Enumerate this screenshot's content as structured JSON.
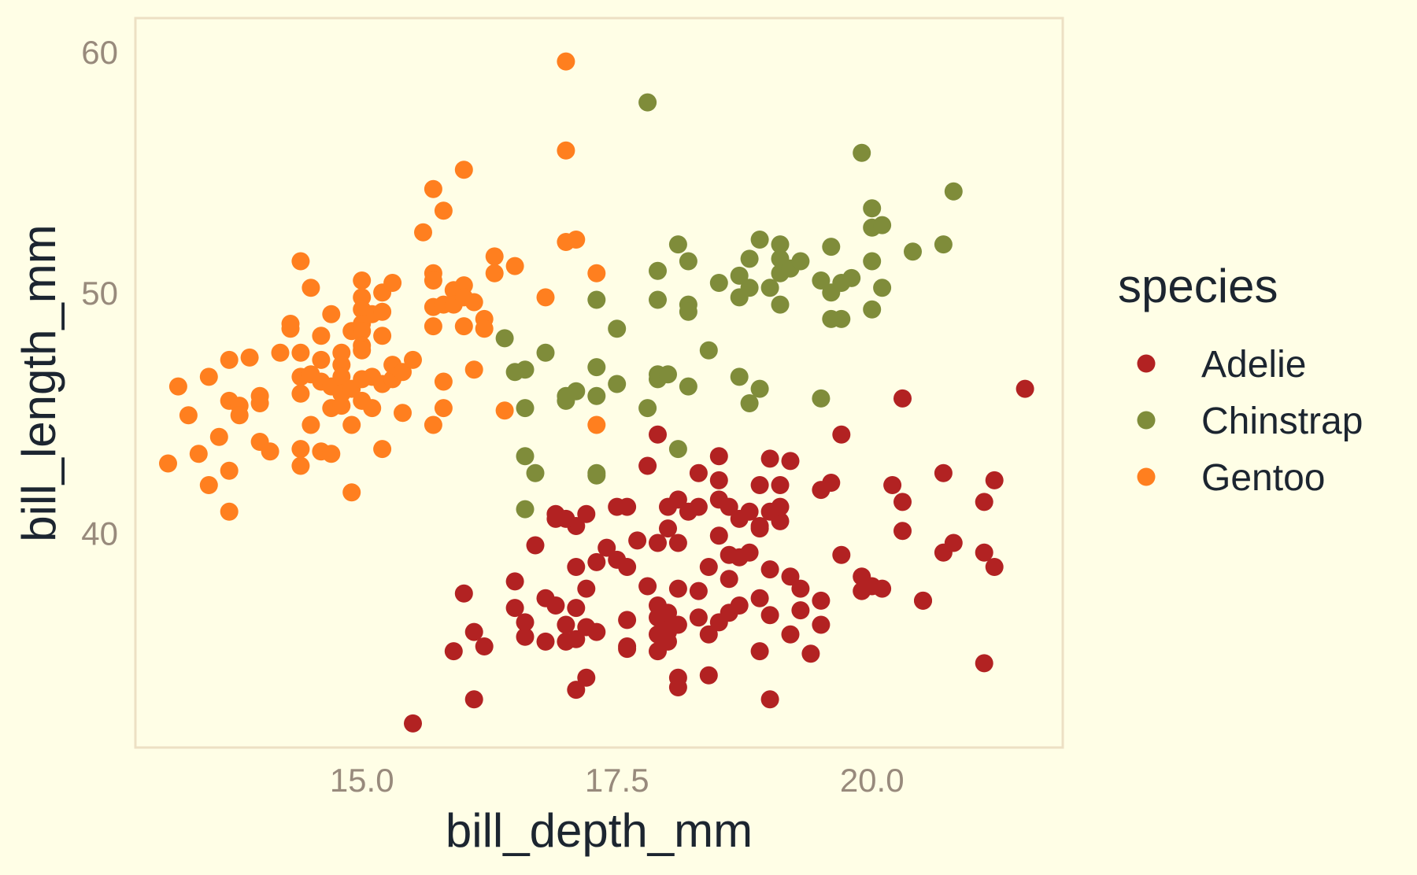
{
  "chart_data": {
    "type": "scatter",
    "xlabel": "bill_depth_mm",
    "ylabel": "bill_length_mm",
    "xlim": [
      12.78,
      21.87
    ],
    "ylim": [
      31.1,
      61.4
    ],
    "xticks": [
      15.0,
      17.5,
      20.0
    ],
    "xtick_labels": [
      "15.0",
      "17.5",
      "20.0"
    ],
    "yticks": [
      40,
      50,
      60
    ],
    "ytick_labels": [
      "40",
      "50",
      "60"
    ],
    "grid": false,
    "panel_border": true,
    "legend": {
      "title": "species",
      "position": "right",
      "entries": [
        "Adelie",
        "Chinstrap",
        "Gentoo"
      ]
    },
    "colors": {
      "Adelie": "#b22222",
      "Chinstrap": "#7f8c3a",
      "Gentoo": "#ff7f1f",
      "background": "#fffee6",
      "panel_border": "#ede0c4",
      "tick_text": "#988a7c",
      "title_text": "#1c2530"
    },
    "series": [
      {
        "name": "Adelie",
        "points": [
          [
            15.5,
            32.1
          ],
          [
            16.1,
            33.1
          ],
          [
            17.1,
            33.5
          ],
          [
            17.2,
            34.0
          ],
          [
            18.1,
            33.6
          ],
          [
            18.1,
            34.0
          ],
          [
            18.4,
            34.1
          ],
          [
            19.0,
            33.1
          ],
          [
            21.1,
            34.6
          ],
          [
            15.9,
            35.1
          ],
          [
            16.1,
            35.9
          ],
          [
            16.2,
            35.3
          ],
          [
            16.6,
            35.7
          ],
          [
            16.8,
            35.5
          ],
          [
            17.0,
            35.5
          ],
          [
            17.1,
            35.6
          ],
          [
            17.3,
            35.9
          ],
          [
            17.6,
            35.3
          ],
          [
            17.6,
            35.2
          ],
          [
            17.9,
            35.8
          ],
          [
            17.9,
            35.1
          ],
          [
            18.0,
            35.5
          ],
          [
            18.0,
            35.9
          ],
          [
            18.4,
            35.8
          ],
          [
            18.9,
            35.1
          ],
          [
            19.2,
            35.8
          ],
          [
            19.4,
            35.0
          ],
          [
            19.5,
            36.2
          ],
          [
            16.0,
            37.5
          ],
          [
            16.5,
            36.9
          ],
          [
            16.6,
            36.3
          ],
          [
            16.8,
            37.3
          ],
          [
            16.9,
            37.0
          ],
          [
            17.0,
            36.2
          ],
          [
            17.1,
            36.9
          ],
          [
            17.2,
            36.1
          ],
          [
            17.6,
            36.4
          ],
          [
            17.9,
            36.5
          ],
          [
            17.9,
            37.0
          ],
          [
            18.0,
            36.0
          ],
          [
            18.1,
            36.2
          ],
          [
            18.0,
            36.7
          ],
          [
            18.3,
            36.5
          ],
          [
            18.5,
            36.3
          ],
          [
            18.6,
            36.7
          ],
          [
            18.7,
            37.0
          ],
          [
            19.0,
            36.6
          ],
          [
            19.3,
            36.8
          ],
          [
            19.5,
            37.2
          ],
          [
            19.9,
            37.6
          ],
          [
            20.1,
            37.7
          ],
          [
            20.5,
            37.2
          ],
          [
            16.5,
            38.0
          ],
          [
            16.7,
            39.5
          ],
          [
            16.9,
            40.6
          ],
          [
            17.1,
            38.6
          ],
          [
            17.1,
            40.3
          ],
          [
            17.2,
            37.7
          ],
          [
            17.3,
            38.8
          ],
          [
            17.4,
            39.4
          ],
          [
            17.5,
            38.9
          ],
          [
            17.6,
            38.6
          ],
          [
            17.7,
            39.7
          ],
          [
            17.8,
            37.8
          ],
          [
            17.9,
            39.6
          ],
          [
            18.0,
            40.2
          ],
          [
            18.1,
            39.6
          ],
          [
            18.1,
            37.7
          ],
          [
            18.3,
            37.6
          ],
          [
            18.4,
            38.6
          ],
          [
            18.5,
            39.9
          ],
          [
            18.6,
            39.1
          ],
          [
            18.6,
            38.1
          ],
          [
            18.7,
            39.0
          ],
          [
            18.8,
            39.2
          ],
          [
            18.9,
            40.3
          ],
          [
            18.9,
            37.3
          ],
          [
            19.0,
            38.5
          ],
          [
            19.1,
            40.5
          ],
          [
            19.2,
            38.2
          ],
          [
            19.3,
            37.7
          ],
          [
            19.7,
            39.1
          ],
          [
            19.9,
            38.2
          ],
          [
            20.0,
            37.8
          ],
          [
            20.3,
            40.1
          ],
          [
            20.5,
            37.2
          ],
          [
            20.7,
            39.2
          ],
          [
            20.8,
            39.6
          ],
          [
            21.1,
            39.2
          ],
          [
            21.2,
            38.6
          ],
          [
            16.9,
            40.8
          ],
          [
            17.0,
            40.6
          ],
          [
            17.2,
            40.8
          ],
          [
            17.5,
            41.1
          ],
          [
            17.6,
            41.1
          ],
          [
            17.8,
            42.8
          ],
          [
            18.0,
            41.1
          ],
          [
            18.1,
            41.4
          ],
          [
            18.2,
            40.9
          ],
          [
            18.3,
            41.1
          ],
          [
            18.5,
            41.4
          ],
          [
            18.6,
            41.1
          ],
          [
            18.7,
            40.6
          ],
          [
            18.8,
            40.9
          ],
          [
            18.9,
            40.2
          ],
          [
            19.0,
            40.9
          ],
          [
            19.1,
            41.1
          ],
          [
            18.3,
            42.5
          ],
          [
            18.5,
            42.2
          ],
          [
            18.5,
            43.2
          ],
          [
            18.9,
            42.0
          ],
          [
            19.0,
            43.1
          ],
          [
            19.1,
            42.0
          ],
          [
            19.2,
            43.0
          ],
          [
            19.5,
            41.8
          ],
          [
            19.6,
            42.1
          ],
          [
            19.7,
            44.1
          ],
          [
            20.2,
            42.0
          ],
          [
            20.3,
            41.3
          ],
          [
            20.3,
            45.6
          ],
          [
            20.7,
            42.5
          ],
          [
            21.1,
            41.3
          ],
          [
            21.2,
            42.2
          ],
          [
            21.5,
            46.0
          ],
          [
            17.9,
            44.1
          ]
        ]
      },
      {
        "name": "Chinstrap",
        "points": [
          [
            16.4,
            48.1
          ],
          [
            16.5,
            46.7
          ],
          [
            16.6,
            46.8
          ],
          [
            16.6,
            45.2
          ],
          [
            16.6,
            43.2
          ],
          [
            16.6,
            41.0
          ],
          [
            16.7,
            42.5
          ],
          [
            16.8,
            47.5
          ],
          [
            17.0,
            45.5
          ],
          [
            17.0,
            45.7
          ],
          [
            17.1,
            45.9
          ],
          [
            17.3,
            45.7
          ],
          [
            17.3,
            46.9
          ],
          [
            17.3,
            49.7
          ],
          [
            17.3,
            42.5
          ],
          [
            17.3,
            42.4
          ],
          [
            17.5,
            48.5
          ],
          [
            17.5,
            46.2
          ],
          [
            17.9,
            46.4
          ],
          [
            17.9,
            46.6
          ],
          [
            17.8,
            45.2
          ],
          [
            17.8,
            57.9
          ],
          [
            17.9,
            50.9
          ],
          [
            17.9,
            49.7
          ],
          [
            18.0,
            46.6
          ],
          [
            18.1,
            52.0
          ],
          [
            18.2,
            51.3
          ],
          [
            18.2,
            49.5
          ],
          [
            18.2,
            49.2
          ],
          [
            18.2,
            46.1
          ],
          [
            18.4,
            47.6
          ],
          [
            18.1,
            43.5
          ],
          [
            18.5,
            50.4
          ],
          [
            18.7,
            50.7
          ],
          [
            18.7,
            49.8
          ],
          [
            18.7,
            46.5
          ],
          [
            18.8,
            51.4
          ],
          [
            18.8,
            50.2
          ],
          [
            18.8,
            45.4
          ],
          [
            18.9,
            52.2
          ],
          [
            19.0,
            50.2
          ],
          [
            18.9,
            46.0
          ],
          [
            19.1,
            52.0
          ],
          [
            19.1,
            51.4
          ],
          [
            19.1,
            50.8
          ],
          [
            19.1,
            49.5
          ],
          [
            19.2,
            51.0
          ],
          [
            19.3,
            51.3
          ],
          [
            19.5,
            50.5
          ],
          [
            19.5,
            45.6
          ],
          [
            19.6,
            51.9
          ],
          [
            19.6,
            50.0
          ],
          [
            19.6,
            48.9
          ],
          [
            19.7,
            50.4
          ],
          [
            19.7,
            48.9
          ],
          [
            19.8,
            50.6
          ],
          [
            19.9,
            55.8
          ],
          [
            20.0,
            52.7
          ],
          [
            20.0,
            53.5
          ],
          [
            20.0,
            51.3
          ],
          [
            20.0,
            49.3
          ],
          [
            20.1,
            52.8
          ],
          [
            20.1,
            50.2
          ],
          [
            20.4,
            51.7
          ],
          [
            20.7,
            52.0
          ],
          [
            20.8,
            54.2
          ]
        ]
      },
      {
        "name": "Gentoo",
        "points": [
          [
            13.1,
            42.9
          ],
          [
            13.2,
            46.1
          ],
          [
            13.3,
            44.9
          ],
          [
            13.4,
            43.3
          ],
          [
            13.5,
            46.5
          ],
          [
            13.5,
            42.0
          ],
          [
            13.6,
            44.0
          ],
          [
            13.7,
            47.2
          ],
          [
            13.7,
            45.5
          ],
          [
            13.7,
            42.6
          ],
          [
            13.7,
            40.9
          ],
          [
            13.8,
            45.3
          ],
          [
            13.8,
            44.9
          ],
          [
            13.9,
            47.3
          ],
          [
            14.0,
            45.7
          ],
          [
            14.0,
            45.4
          ],
          [
            14.0,
            43.8
          ],
          [
            14.1,
            43.4
          ],
          [
            14.2,
            47.5
          ],
          [
            14.3,
            48.7
          ],
          [
            14.3,
            48.5
          ],
          [
            14.4,
            47.5
          ],
          [
            14.4,
            46.5
          ],
          [
            14.4,
            45.8
          ],
          [
            14.4,
            43.5
          ],
          [
            14.4,
            42.8
          ],
          [
            14.4,
            51.3
          ],
          [
            14.5,
            46.6
          ],
          [
            14.5,
            44.5
          ],
          [
            14.5,
            50.2
          ],
          [
            14.6,
            48.2
          ],
          [
            14.6,
            47.2
          ],
          [
            14.6,
            46.3
          ],
          [
            14.6,
            43.4
          ],
          [
            14.7,
            49.1
          ],
          [
            14.7,
            46.1
          ],
          [
            14.7,
            45.2
          ],
          [
            14.7,
            43.3
          ],
          [
            14.8,
            47.5
          ],
          [
            14.8,
            47.0
          ],
          [
            14.8,
            46.5
          ],
          [
            14.8,
            45.8
          ],
          [
            14.8,
            45.3
          ],
          [
            14.9,
            48.4
          ],
          [
            14.9,
            46.0
          ],
          [
            14.9,
            41.7
          ],
          [
            14.9,
            44.5
          ],
          [
            15.1,
            49.1
          ],
          [
            15.1,
            46.5
          ],
          [
            15.1,
            45.2
          ],
          [
            15.2,
            46.2
          ],
          [
            15.3,
            46.4
          ],
          [
            15.0,
            50.5
          ],
          [
            15.0,
            49.8
          ],
          [
            15.0,
            49.3
          ],
          [
            15.0,
            48.7
          ],
          [
            15.0,
            48.4
          ],
          [
            15.0,
            47.8
          ],
          [
            15.0,
            47.6
          ],
          [
            15.0,
            46.4
          ],
          [
            15.0,
            45.5
          ],
          [
            15.2,
            50.0
          ],
          [
            15.2,
            49.2
          ],
          [
            15.2,
            48.2
          ],
          [
            15.2,
            43.5
          ],
          [
            15.3,
            50.4
          ],
          [
            15.3,
            47.0
          ],
          [
            15.4,
            46.7
          ],
          [
            15.4,
            45.0
          ],
          [
            15.5,
            47.2
          ],
          [
            15.6,
            52.5
          ],
          [
            15.7,
            54.3
          ],
          [
            15.7,
            50.8
          ],
          [
            15.7,
            50.5
          ],
          [
            15.7,
            49.4
          ],
          [
            15.7,
            48.6
          ],
          [
            15.7,
            44.5
          ],
          [
            15.8,
            53.4
          ],
          [
            15.8,
            49.5
          ],
          [
            15.8,
            46.3
          ],
          [
            15.8,
            45.2
          ],
          [
            15.9,
            50.1
          ],
          [
            15.9,
            49.5
          ],
          [
            16.0,
            55.1
          ],
          [
            16.0,
            50.3
          ],
          [
            16.0,
            49.8
          ],
          [
            16.0,
            48.6
          ],
          [
            16.1,
            49.6
          ],
          [
            16.1,
            46.8
          ],
          [
            16.2,
            48.9
          ],
          [
            16.2,
            48.5
          ],
          [
            16.3,
            51.5
          ],
          [
            16.3,
            50.8
          ],
          [
            16.4,
            45.1
          ],
          [
            16.5,
            51.1
          ],
          [
            16.8,
            49.8
          ],
          [
            17.0,
            59.6
          ],
          [
            17.0,
            55.9
          ],
          [
            17.0,
            52.1
          ],
          [
            17.1,
            52.2
          ],
          [
            17.3,
            50.8
          ],
          [
            17.3,
            44.5
          ]
        ]
      }
    ]
  }
}
